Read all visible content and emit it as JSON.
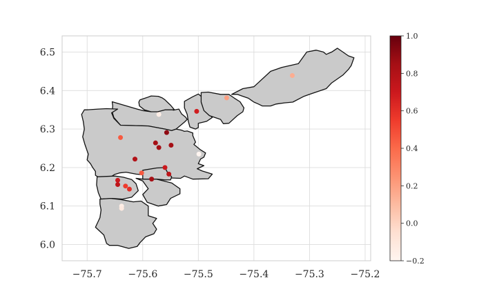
{
  "chart_data": {
    "type": "scatter",
    "title": "",
    "xlabel": "",
    "ylabel": "",
    "xlim": [
      -75.745,
      -75.19
    ],
    "ylim": [
      5.958,
      6.542
    ],
    "x_ticks": [
      -75.7,
      -75.6,
      -75.5,
      -75.4,
      -75.3,
      -75.2
    ],
    "x_tick_labels": [
      "−75.7",
      "−75.6",
      "−75.5",
      "−75.4",
      "−75.3",
      "−75.2"
    ],
    "y_ticks": [
      6.0,
      6.1,
      6.2,
      6.3,
      6.4,
      6.5
    ],
    "y_tick_labels": [
      "6.0",
      "6.1",
      "6.2",
      "6.3",
      "6.4",
      "6.5"
    ],
    "grid": true,
    "colormap": "Reds",
    "colorbar": {
      "range": [
        -0.2,
        1.0
      ],
      "ticks": [
        -0.2,
        0.0,
        0.2,
        0.4,
        0.6,
        0.8,
        1.0
      ],
      "tick_labels": [
        "−0.2",
        "0.0",
        "0.2",
        "0.4",
        "0.6",
        "0.8",
        "1.0"
      ]
    },
    "region_fill": "#cacaca",
    "region_edge": "#111111",
    "regions": [
      {
        "coords": [
          [
            -75.655,
            6.371
          ],
          [
            -75.61,
            6.352
          ],
          [
            -75.6,
            6.348
          ],
          [
            -75.585,
            6.345
          ],
          [
            -75.578,
            6.352
          ],
          [
            -75.572,
            6.345
          ],
          [
            -75.565,
            6.352
          ],
          [
            -75.557,
            6.36
          ],
          [
            -75.55,
            6.355
          ],
          [
            -75.545,
            6.349
          ],
          [
            -75.535,
            6.352
          ],
          [
            -75.53,
            6.339
          ],
          [
            -75.523,
            6.331
          ],
          [
            -75.52,
            6.325
          ],
          [
            -75.525,
            6.318
          ],
          [
            -75.53,
            6.312
          ],
          [
            -75.54,
            6.3
          ],
          [
            -75.548,
            6.296
          ],
          [
            -75.56,
            6.3
          ],
          [
            -75.59,
            6.308
          ],
          [
            -75.64,
            6.31
          ],
          [
            -75.652,
            6.33
          ],
          [
            -75.655,
            6.345
          ],
          [
            -75.654,
            6.36
          ]
        ]
      },
      {
        "coords": [
          [
            -75.605,
            6.376
          ],
          [
            -75.592,
            6.382
          ],
          [
            -75.585,
            6.386
          ],
          [
            -75.572,
            6.385
          ],
          [
            -75.565,
            6.381
          ],
          [
            -75.56,
            6.376
          ],
          [
            -75.555,
            6.369
          ],
          [
            -75.55,
            6.362
          ],
          [
            -75.543,
            6.35
          ],
          [
            -75.56,
            6.35
          ],
          [
            -75.573,
            6.345
          ],
          [
            -75.585,
            6.345
          ],
          [
            -75.597,
            6.35
          ],
          [
            -75.606,
            6.36
          ],
          [
            -75.607,
            6.37
          ]
        ]
      },
      {
        "coords": [
          [
            -75.645,
            6.352
          ],
          [
            -75.656,
            6.342
          ],
          [
            -75.652,
            6.328
          ],
          [
            -75.64,
            6.31
          ],
          [
            -75.59,
            6.308
          ],
          [
            -75.56,
            6.3
          ],
          [
            -75.548,
            6.296
          ],
          [
            -75.54,
            6.3
          ],
          [
            -75.53,
            6.297
          ],
          [
            -75.525,
            6.294
          ],
          [
            -75.52,
            6.295
          ],
          [
            -75.51,
            6.29
          ],
          [
            -75.51,
            6.283
          ],
          [
            -75.505,
            6.266
          ],
          [
            -75.508,
            6.26
          ],
          [
            -75.496,
            6.246
          ],
          [
            -75.487,
            6.238
          ],
          [
            -75.49,
            6.227
          ],
          [
            -75.496,
            6.222
          ],
          [
            -75.5,
            6.21
          ],
          [
            -75.49,
            6.205
          ],
          [
            -75.502,
            6.197
          ],
          [
            -75.493,
            6.191
          ],
          [
            -75.475,
            6.183
          ],
          [
            -75.482,
            6.171
          ],
          [
            -75.51,
            6.17
          ],
          [
            -75.525,
            6.178
          ],
          [
            -75.532,
            6.172
          ],
          [
            -75.55,
            6.173
          ],
          [
            -75.56,
            6.18
          ],
          [
            -75.578,
            6.175
          ],
          [
            -75.598,
            6.181
          ],
          [
            -75.612,
            6.183
          ],
          [
            -75.63,
            6.188
          ],
          [
            -75.642,
            6.186
          ],
          [
            -75.651,
            6.182
          ],
          [
            -75.658,
            6.175
          ],
          [
            -75.68,
            6.175
          ],
          [
            -75.685,
            6.18
          ],
          [
            -75.685,
            6.19
          ],
          [
            -75.69,
            6.2
          ],
          [
            -75.694,
            6.21
          ],
          [
            -75.7,
            6.22
          ],
          [
            -75.698,
            6.235
          ],
          [
            -75.704,
            6.26
          ],
          [
            -75.708,
            6.28
          ],
          [
            -75.705,
            6.3
          ],
          [
            -75.707,
            6.32
          ],
          [
            -75.71,
            6.338
          ],
          [
            -75.705,
            6.35
          ],
          [
            -75.7,
            6.35
          ],
          [
            -75.68,
            6.352
          ],
          [
            -75.665,
            6.353
          ]
        ]
      },
      {
        "coords": [
          [
            -75.6,
            6.193
          ],
          [
            -75.575,
            6.199
          ],
          [
            -75.56,
            6.2
          ],
          [
            -75.555,
            6.186
          ],
          [
            -75.548,
            6.176
          ],
          [
            -75.55,
            6.168
          ],
          [
            -75.56,
            6.168
          ],
          [
            -75.575,
            6.17
          ],
          [
            -75.59,
            6.16
          ],
          [
            -75.6,
            6.17
          ]
        ]
      },
      {
        "coords": [
          [
            -75.682,
            6.176
          ],
          [
            -75.65,
            6.178
          ],
          [
            -75.635,
            6.175
          ],
          [
            -75.62,
            6.169
          ],
          [
            -75.612,
            6.158
          ],
          [
            -75.608,
            6.14
          ],
          [
            -75.62,
            6.123
          ],
          [
            -75.637,
            6.118
          ],
          [
            -75.655,
            6.12
          ],
          [
            -75.675,
            6.118
          ],
          [
            -75.68,
            6.135
          ],
          [
            -75.683,
            6.155
          ]
        ]
      },
      {
        "coords": [
          [
            -75.612,
            6.172
          ],
          [
            -75.6,
            6.165
          ],
          [
            -75.59,
            6.145
          ],
          [
            -75.6,
            6.13
          ],
          [
            -75.592,
            6.11
          ],
          [
            -75.572,
            6.1
          ],
          [
            -75.557,
            6.104
          ],
          [
            -75.55,
            6.12
          ],
          [
            -75.533,
            6.132
          ],
          [
            -75.533,
            6.145
          ],
          [
            -75.548,
            6.16
          ],
          [
            -75.575,
            6.17
          ],
          [
            -75.6,
            6.17
          ]
        ]
      },
      {
        "coords": [
          [
            -75.677,
            6.118
          ],
          [
            -75.658,
            6.12
          ],
          [
            -75.64,
            6.117
          ],
          [
            -75.617,
            6.111
          ],
          [
            -75.603,
            6.113
          ],
          [
            -75.59,
            6.1
          ],
          [
            -75.59,
            6.09
          ],
          [
            -75.59,
            6.075
          ],
          [
            -75.575,
            6.068
          ],
          [
            -75.582,
            6.055
          ],
          [
            -75.575,
            6.04
          ],
          [
            -75.58,
            6.028
          ],
          [
            -75.595,
            6.02
          ],
          [
            -75.605,
            6.005
          ],
          [
            -75.61,
            5.995
          ],
          [
            -75.625,
            5.99
          ],
          [
            -75.645,
            5.998
          ],
          [
            -75.66,
            5.998
          ],
          [
            -75.665,
            6.003
          ],
          [
            -75.67,
            6.025
          ],
          [
            -75.685,
            6.045
          ],
          [
            -75.677,
            6.07
          ],
          [
            -75.675,
            6.09
          ],
          [
            -75.677,
            6.105
          ]
        ]
      },
      {
        "coords": [
          [
            -75.525,
            6.372
          ],
          [
            -75.51,
            6.384
          ],
          [
            -75.5,
            6.391
          ],
          [
            -75.495,
            6.385
          ],
          [
            -75.49,
            6.365
          ],
          [
            -75.48,
            6.338
          ],
          [
            -75.475,
            6.33
          ],
          [
            -75.485,
            6.32
          ],
          [
            -75.5,
            6.315
          ],
          [
            -75.5,
            6.304
          ],
          [
            -75.505,
            6.3
          ],
          [
            -75.515,
            6.305
          ],
          [
            -75.518,
            6.32
          ],
          [
            -75.52,
            6.338
          ],
          [
            -75.525,
            6.355
          ]
        ]
      },
      {
        "coords": [
          [
            -75.495,
            6.395
          ],
          [
            -75.482,
            6.396
          ],
          [
            -75.46,
            6.39
          ],
          [
            -75.445,
            6.39
          ],
          [
            -75.435,
            6.38
          ],
          [
            -75.425,
            6.371
          ],
          [
            -75.418,
            6.355
          ],
          [
            -75.42,
            6.345
          ],
          [
            -75.43,
            6.335
          ],
          [
            -75.445,
            6.315
          ],
          [
            -75.455,
            6.314
          ],
          [
            -75.46,
            6.325
          ],
          [
            -75.48,
            6.335
          ],
          [
            -75.49,
            6.348
          ],
          [
            -75.495,
            6.37
          ]
        ]
      },
      {
        "coords": [
          [
            -75.44,
            6.39
          ],
          [
            -75.42,
            6.405
          ],
          [
            -75.4,
            6.41
          ],
          [
            -75.37,
            6.45
          ],
          [
            -75.35,
            6.46
          ],
          [
            -75.32,
            6.47
          ],
          [
            -75.305,
            6.5
          ],
          [
            -75.288,
            6.505
          ],
          [
            -75.275,
            6.5
          ],
          [
            -75.27,
            6.494
          ],
          [
            -75.26,
            6.5
          ],
          [
            -75.25,
            6.51
          ],
          [
            -75.24,
            6.5
          ],
          [
            -75.23,
            6.49
          ],
          [
            -75.22,
            6.485
          ],
          [
            -75.225,
            6.465
          ],
          [
            -75.23,
            6.455
          ],
          [
            -75.24,
            6.44
          ],
          [
            -75.26,
            6.42
          ],
          [
            -75.27,
            6.405
          ],
          [
            -75.28,
            6.4
          ],
          [
            -75.3,
            6.39
          ],
          [
            -75.31,
            6.385
          ],
          [
            -75.33,
            6.37
          ],
          [
            -75.345,
            6.368
          ],
          [
            -75.36,
            6.365
          ],
          [
            -75.37,
            6.36
          ],
          [
            -75.385,
            6.36
          ],
          [
            -75.392,
            6.365
          ],
          [
            -75.4,
            6.37
          ],
          [
            -75.405,
            6.375
          ],
          [
            -75.41,
            6.38
          ],
          [
            -75.42,
            6.385
          ],
          [
            -75.43,
            6.39
          ]
        ]
      }
    ],
    "points": [
      {
        "lon": -75.571,
        "lat": 6.338,
        "value": -0.15
      },
      {
        "lon": -75.503,
        "lat": 6.346,
        "value": 0.68
      },
      {
        "lon": -75.449,
        "lat": 6.381,
        "value": 0.2
      },
      {
        "lon": -75.331,
        "lat": 6.439,
        "value": 0.15
      },
      {
        "lon": -75.64,
        "lat": 6.278,
        "value": 0.45
      },
      {
        "lon": -75.557,
        "lat": 6.291,
        "value": 0.9
      },
      {
        "lon": -75.577,
        "lat": 6.264,
        "value": 0.85
      },
      {
        "lon": -75.571,
        "lat": 6.252,
        "value": 0.85
      },
      {
        "lon": -75.549,
        "lat": 6.258,
        "value": 0.85
      },
      {
        "lon": -75.499,
        "lat": 6.235,
        "value": -0.2
      },
      {
        "lon": -75.614,
        "lat": 6.222,
        "value": 0.8
      },
      {
        "lon": -75.56,
        "lat": 6.2,
        "value": 0.7
      },
      {
        "lon": -75.602,
        "lat": 6.186,
        "value": 0.45
      },
      {
        "lon": -75.553,
        "lat": 6.183,
        "value": 0.75
      },
      {
        "lon": -75.584,
        "lat": 6.17,
        "value": 0.85
      },
      {
        "lon": -75.645,
        "lat": 6.167,
        "value": 0.7
      },
      {
        "lon": -75.645,
        "lat": 6.156,
        "value": 0.75
      },
      {
        "lon": -75.631,
        "lat": 6.152,
        "value": 0.55
      },
      {
        "lon": -75.624,
        "lat": 6.144,
        "value": 0.6
      },
      {
        "lon": -75.638,
        "lat": 6.1,
        "value": -0.15
      },
      {
        "lon": -75.638,
        "lat": 6.094,
        "value": -0.12
      }
    ]
  }
}
